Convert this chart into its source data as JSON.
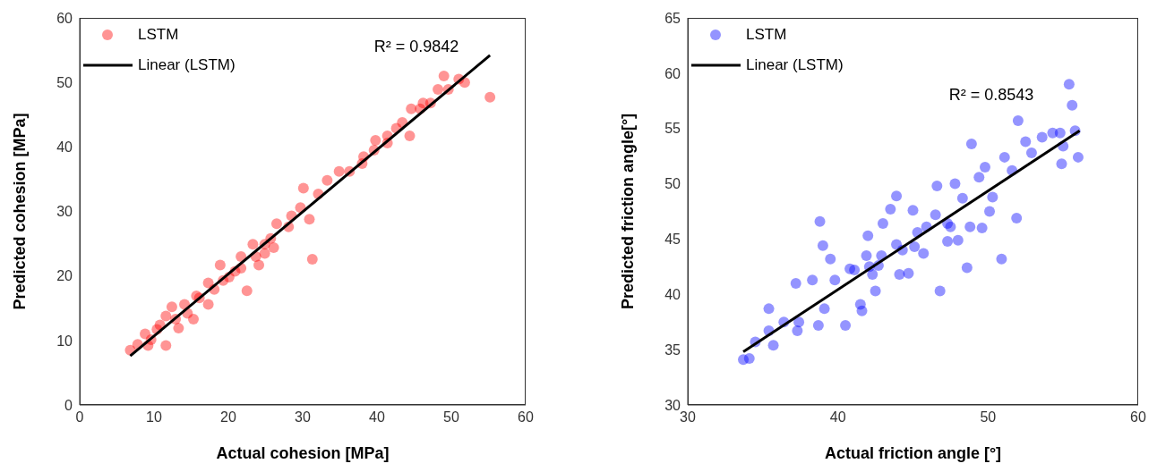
{
  "chart_data": [
    {
      "type": "scatter",
      "xlabel": "Actual cohesion [MPa]",
      "ylabel": "Predicted cohesion [MPa]",
      "xlim": [
        0,
        60
      ],
      "xticks": [
        0,
        10,
        20,
        30,
        40,
        50,
        60
      ],
      "ylim": [
        0,
        60
      ],
      "yticks": [
        0,
        10,
        20,
        30,
        40,
        50,
        60
      ],
      "grid": false,
      "legend": "top left",
      "annotations": [
        "R² = 0.9842"
      ],
      "series": [
        {
          "name": "LSTM",
          "marker": "circle",
          "color": "#ff0000",
          "x": [
            6.8,
            7.8,
            8.8,
            9.2,
            9.6,
            10.4,
            10.8,
            11.6,
            11.6,
            12.4,
            12.9,
            13.3,
            14.1,
            14.5,
            15.3,
            15.7,
            16.1,
            17.3,
            17.3,
            18.1,
            18.9,
            19.3,
            20.1,
            20.9,
            21.7,
            21.7,
            22.5,
            23.3,
            23.7,
            24.1,
            24.9,
            24.9,
            25.7,
            26.1,
            26.5,
            28.1,
            28.5,
            29.7,
            30.1,
            30.9,
            31.3,
            32.1,
            33.3,
            34.9,
            36.3,
            38.0,
            38.2,
            39.6,
            39.8,
            41.4,
            41.4,
            42.6,
            43.4,
            44.4,
            44.6,
            45.8,
            46.2,
            47.2,
            48.2,
            49.0,
            49.6,
            51.0,
            51.8,
            55.2
          ],
          "values": [
            8.5,
            9.4,
            11.0,
            9.2,
            10.1,
            11.7,
            12.4,
            9.2,
            13.8,
            15.2,
            13.3,
            11.9,
            15.6,
            14.2,
            13.3,
            16.9,
            16.6,
            18.9,
            15.6,
            17.9,
            21.7,
            19.3,
            19.8,
            20.7,
            23.0,
            21.2,
            17.7,
            24.9,
            23.0,
            21.7,
            24.9,
            23.5,
            25.8,
            24.4,
            28.1,
            27.6,
            29.3,
            30.6,
            33.6,
            28.8,
            22.6,
            32.7,
            34.8,
            36.2,
            36.2,
            37.4,
            38.5,
            39.5,
            41.0,
            40.6,
            41.7,
            42.9,
            43.8,
            41.7,
            45.9,
            45.9,
            46.8,
            46.8,
            48.9,
            51.0,
            48.9,
            50.5,
            50.0,
            47.7
          ]
        },
        {
          "name": "Linear (LSTM)",
          "type": "line",
          "marker": "none",
          "color": "#000000",
          "x": [
            6.8,
            55.2
          ],
          "values": [
            7.6,
            54.2
          ]
        }
      ]
    },
    {
      "type": "scatter",
      "xlabel": "Actual friction angle [°]",
      "ylabel": "Predicted friction angle[°]",
      "xlim": [
        30,
        60
      ],
      "xticks": [
        30,
        40,
        50,
        60
      ],
      "ylim": [
        30,
        65
      ],
      "yticks": [
        30,
        35,
        40,
        45,
        50,
        55,
        60,
        65
      ],
      "grid": false,
      "legend": "top left",
      "annotations": [
        "R² = 0.8543"
      ],
      "series": [
        {
          "name": "LSTM",
          "marker": "circle",
          "color": "#0000ff",
          "x": [
            33.7,
            34.1,
            34.5,
            35.4,
            35.7,
            35.4,
            36.4,
            37.2,
            37.3,
            37.4,
            38.3,
            38.8,
            39.0,
            38.7,
            39.1,
            39.5,
            39.8,
            40.5,
            40.8,
            41.1,
            41.5,
            41.6,
            41.9,
            42.0,
            42.1,
            42.3,
            42.5,
            42.7,
            42.9,
            43.0,
            43.5,
            43.9,
            43.9,
            44.1,
            44.3,
            44.7,
            45.0,
            45.1,
            45.3,
            45.7,
            45.9,
            46.5,
            46.6,
            46.8,
            47.3,
            47.3,
            47.5,
            47.8,
            48.0,
            48.3,
            48.6,
            48.8,
            48.9,
            49.4,
            49.6,
            49.8,
            50.1,
            50.3,
            50.9,
            51.1,
            51.6,
            51.9,
            52.0,
            52.5,
            52.9,
            53.6,
            54.3,
            54.8,
            54.9,
            55.0,
            55.4,
            55.6,
            55.8,
            56.0
          ],
          "values": [
            34.1,
            34.2,
            35.7,
            38.7,
            35.4,
            36.7,
            37.5,
            41.0,
            36.7,
            37.5,
            41.3,
            46.6,
            44.4,
            37.2,
            38.7,
            43.2,
            41.3,
            37.2,
            42.3,
            42.2,
            39.1,
            38.5,
            43.5,
            45.3,
            42.5,
            41.8,
            40.3,
            42.6,
            43.5,
            46.4,
            47.7,
            48.9,
            44.5,
            41.8,
            44.0,
            41.9,
            47.6,
            44.3,
            45.6,
            43.7,
            46.1,
            47.2,
            49.8,
            40.3,
            44.8,
            46.4,
            46.1,
            50.0,
            44.9,
            48.7,
            42.4,
            46.1,
            53.6,
            50.6,
            46.0,
            51.5,
            47.5,
            48.8,
            43.2,
            52.4,
            51.2,
            46.9,
            55.7,
            53.8,
            52.8,
            54.2,
            54.6,
            54.6,
            51.8,
            53.4,
            59.0,
            57.1,
            54.8,
            52.4
          ]
        },
        {
          "name": "Linear (LSTM)",
          "type": "line",
          "marker": "none",
          "color": "#000000",
          "x": [
            33.7,
            56.1
          ],
          "values": [
            34.8,
            54.8
          ]
        }
      ]
    }
  ]
}
